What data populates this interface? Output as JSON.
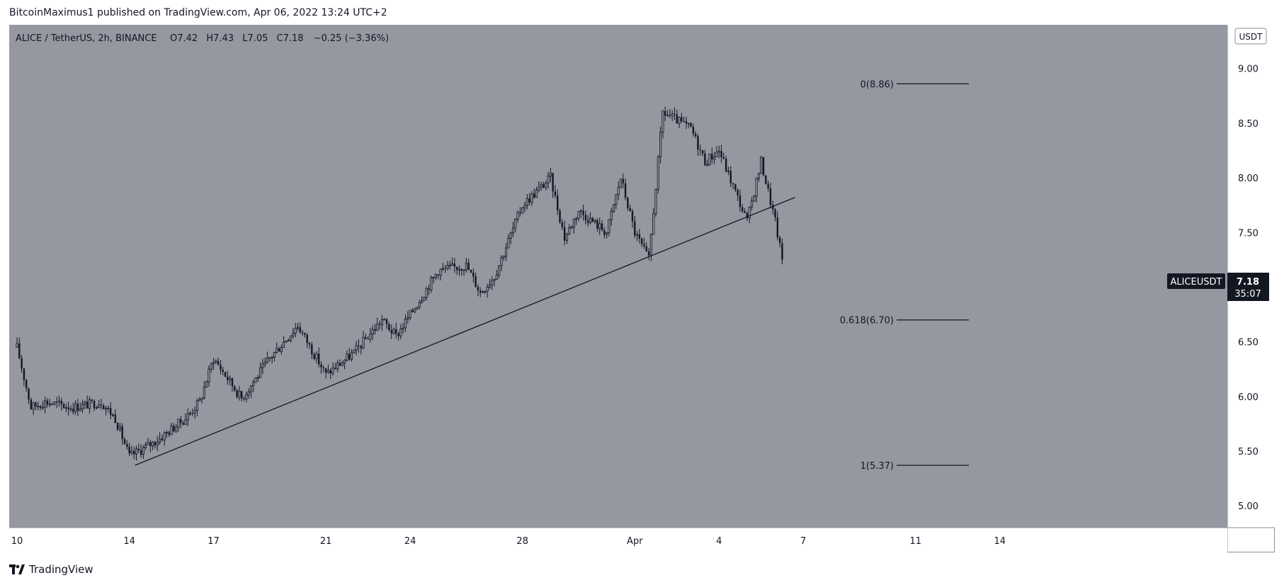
{
  "header": {
    "publisher_line": "BitcoinMaximus1 published on TradingView.com, Apr 06, 2022 13:24 UTC+2"
  },
  "legend": {
    "symbol": "ALICE / TetherUS, 2h, BINANCE",
    "o_label": "O",
    "o_value": "7.42",
    "h_label": "H",
    "h_value": "7.43",
    "l_label": "L",
    "l_value": "7.05",
    "c_label": "C",
    "c_value": "7.18",
    "change": "−0.25 (−3.36%)"
  },
  "currency_badge": "USDT",
  "price_tag": {
    "symbol": "ALICEUSDT",
    "price": "7.18",
    "countdown": "35:07"
  },
  "footer": {
    "brand": "TradingView"
  },
  "colors": {
    "plot_bg": "#9598a1",
    "candle": "#131722",
    "price_tag_bg": "#131722",
    "axis_text": "#131722"
  },
  "chart_data": {
    "type": "candlestick",
    "x_ticks": [
      "10",
      "14",
      "17",
      "21",
      "24",
      "28",
      "Apr",
      "4",
      "7",
      "11",
      "14"
    ],
    "y_ticks": [
      "9.00",
      "8.50",
      "8.00",
      "7.50",
      "7.00",
      "6.50",
      "6.00",
      "5.50",
      "5.00"
    ],
    "ylim": [
      4.8,
      9.4
    ],
    "fib_levels": [
      {
        "label": "0(8.86)",
        "value": 8.86
      },
      {
        "label": "0.618(6.70)",
        "value": 6.7
      },
      {
        "label": "1(5.37)",
        "value": 5.37
      }
    ],
    "trendline": {
      "from": {
        "date": "Mar 14",
        "price": 5.37
      },
      "to": {
        "date": "Apr 7",
        "price": 7.82
      }
    },
    "price_path": [
      [
        "Mar 10",
        6.45
      ],
      [
        "Mar 10.5",
        5.9
      ],
      [
        "Mar 11",
        5.95
      ],
      [
        "Mar 12",
        5.9
      ],
      [
        "Mar 13",
        5.95
      ],
      [
        "Mar 13.5",
        5.8
      ],
      [
        "Mar 14",
        5.45
      ],
      [
        "Mar 15",
        5.6
      ],
      [
        "Mar 16",
        5.8
      ],
      [
        "Mar 16.5",
        5.95
      ],
      [
        "Mar 17",
        6.35
      ],
      [
        "Mar 18",
        5.98
      ],
      [
        "Mar 19",
        6.35
      ],
      [
        "Mar 20",
        6.65
      ],
      [
        "Mar 21",
        6.2
      ],
      [
        "Mar 22",
        6.4
      ],
      [
        "Mar 23",
        6.7
      ],
      [
        "Mar 23.5",
        6.55
      ],
      [
        "Mar 25",
        7.15
      ],
      [
        "Mar 26",
        7.2
      ],
      [
        "Mar 26.5",
        6.95
      ],
      [
        "Mar 27",
        7.1
      ],
      [
        "Mar 28",
        7.75
      ],
      [
        "Mar 29",
        8.0
      ],
      [
        "Mar 29.5",
        7.45
      ],
      [
        "Mar 30",
        7.7
      ],
      [
        "Mar 31",
        7.5
      ],
      [
        "Mar 31.5",
        8.0
      ],
      [
        "Apr 1",
        7.5
      ],
      [
        "Apr 1.5",
        7.25
      ],
      [
        "Apr 2",
        8.6
      ],
      [
        "Apr 3",
        8.45
      ],
      [
        "Apr 3.5",
        8.15
      ],
      [
        "Apr 4",
        8.25
      ],
      [
        "Apr 5",
        7.6
      ],
      [
        "Apr 5.5",
        8.15
      ],
      [
        "Apr 6",
        7.6
      ],
      [
        "Apr 6.3",
        7.18
      ]
    ],
    "last_close": 7.18
  }
}
